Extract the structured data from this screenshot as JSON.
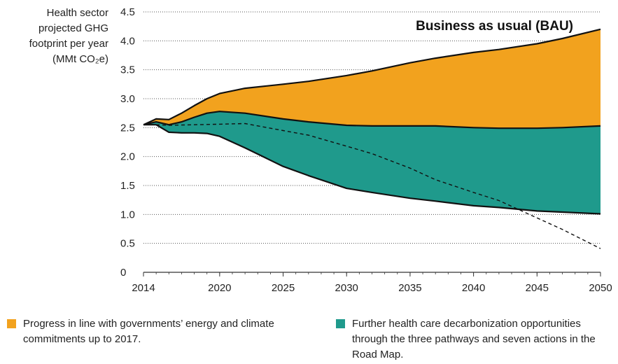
{
  "chart_data": {
    "type": "area",
    "title": "Business as usual (BAU)",
    "ylabel_lines": [
      "Health sector",
      "projected GHG",
      "footprint per year",
      "(MMt CO₂e)"
    ],
    "x_ticks": [
      "2014",
      "2020",
      "2025",
      "2030",
      "2035",
      "2040",
      "2045",
      "2050"
    ],
    "y_ticks": [
      "0",
      "0.5",
      "1.0",
      "1.5",
      "2.0",
      "2.5",
      "3.0",
      "3.5",
      "4.0",
      "4.5"
    ],
    "xlim": [
      2014,
      2050
    ],
    "ylim": [
      0,
      4.5
    ],
    "grid": "horizontal dotted",
    "series": [
      {
        "color": "#F2A21E",
        "x": [
          2014,
          2015,
          2016,
          2017,
          2018,
          2019,
          2020,
          2022,
          2025,
          2027,
          2030,
          2032,
          2035,
          2037,
          2040,
          2042,
          2045,
          2047,
          2050
        ],
        "values": [
          2.55,
          2.65,
          2.64,
          2.75,
          2.88,
          3.0,
          3.09,
          3.18,
          3.25,
          3.3,
          3.4,
          3.48,
          3.62,
          3.7,
          3.8,
          3.85,
          3.95,
          4.04,
          4.2
        ]
      },
      {
        "color": "#1F9A8C",
        "x": [
          2014,
          2015,
          2016,
          2017,
          2018,
          2019,
          2020,
          2022,
          2025,
          2027,
          2030,
          2032,
          2035,
          2037,
          2040,
          2042,
          2045,
          2047,
          2050
        ],
        "values": [
          2.55,
          2.6,
          2.55,
          2.6,
          2.68,
          2.75,
          2.78,
          2.75,
          2.65,
          2.6,
          2.54,
          2.53,
          2.53,
          2.53,
          2.5,
          2.49,
          2.49,
          2.5,
          2.53
        ]
      },
      {
        "color": "#1F9A8C",
        "x": [
          2014,
          2015,
          2016,
          2017,
          2018,
          2019,
          2020,
          2022,
          2025,
          2027,
          2030,
          2032,
          2035,
          2037,
          2040,
          2042,
          2045,
          2047,
          2050
        ],
        "values": [
          2.55,
          2.55,
          2.42,
          2.41,
          2.41,
          2.4,
          2.35,
          2.15,
          1.83,
          1.67,
          1.45,
          1.38,
          1.28,
          1.23,
          1.15,
          1.12,
          1.06,
          1.04,
          1.01
        ]
      },
      {
        "style": "dashed",
        "x": [
          2014,
          2015,
          2016,
          2018,
          2020,
          2022,
          2025,
          2027,
          2030,
          2032,
          2035,
          2037,
          2040,
          2042,
          2045,
          2047,
          2050
        ],
        "values": [
          2.55,
          2.55,
          2.54,
          2.55,
          2.56,
          2.57,
          2.45,
          2.37,
          2.18,
          2.05,
          1.8,
          1.6,
          1.38,
          1.24,
          0.94,
          0.74,
          0.41
        ]
      }
    ],
    "legend": [
      {
        "color": "#F2A21E",
        "label": "Progress in line with governments’ energy and climate commitments up to 2017."
      },
      {
        "color": "#1F9A8C",
        "label": "Further health care decarbonization opportunities through the three pathways and seven actions in the Road Map."
      }
    ]
  }
}
